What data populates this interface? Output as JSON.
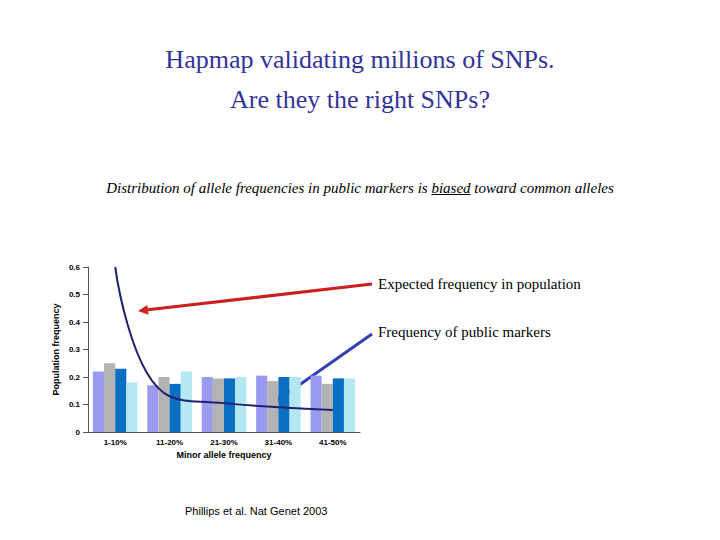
{
  "title": [
    "Hapmap validating millions of SNPs.",
    "Are they the right SNPs?"
  ],
  "subtitle": "Distribution of allele frequencies in public markers is biased toward common alleles",
  "subtitle_underlined": "biased",
  "chart_data": {
    "type": "bar",
    "categories": [
      "1-10%",
      "11-20%",
      "21-30%",
      "31-40%",
      "41-50%"
    ],
    "series": [
      {
        "type": "bar",
        "color": "#9a9aee",
        "values": [
          0.22,
          0.17,
          0.2,
          0.205,
          0.205
        ]
      },
      {
        "type": "bar",
        "color": "#b3b3b3",
        "values": [
          0.25,
          0.2,
          0.195,
          0.185,
          0.175
        ]
      },
      {
        "type": "bar",
        "color": "#0a6fc2",
        "values": [
          0.23,
          0.175,
          0.195,
          0.2,
          0.195
        ]
      },
      {
        "type": "bar",
        "color": "#b3e8f2",
        "values": [
          0.18,
          0.22,
          0.2,
          0.2,
          0.195
        ]
      },
      {
        "type": "line",
        "color": "#202070",
        "values": [
          0.6,
          0.13,
          0.105,
          0.09,
          0.08
        ]
      }
    ],
    "xlabel": "Minor allele frequency",
    "ylabel": "Population frequency",
    "ylim": [
      0,
      0.6
    ],
    "yticks": [
      0,
      0.1,
      0.2,
      0.3,
      0.4,
      0.5,
      0.6
    ],
    "grid": false,
    "annotations": [
      {
        "text": "Expected frequency in population",
        "color": "#cc2020"
      },
      {
        "text": "Frequency of public markers",
        "color": "#3040b0"
      }
    ],
    "source": "Phillips et al. Nat Genet 2003"
  }
}
